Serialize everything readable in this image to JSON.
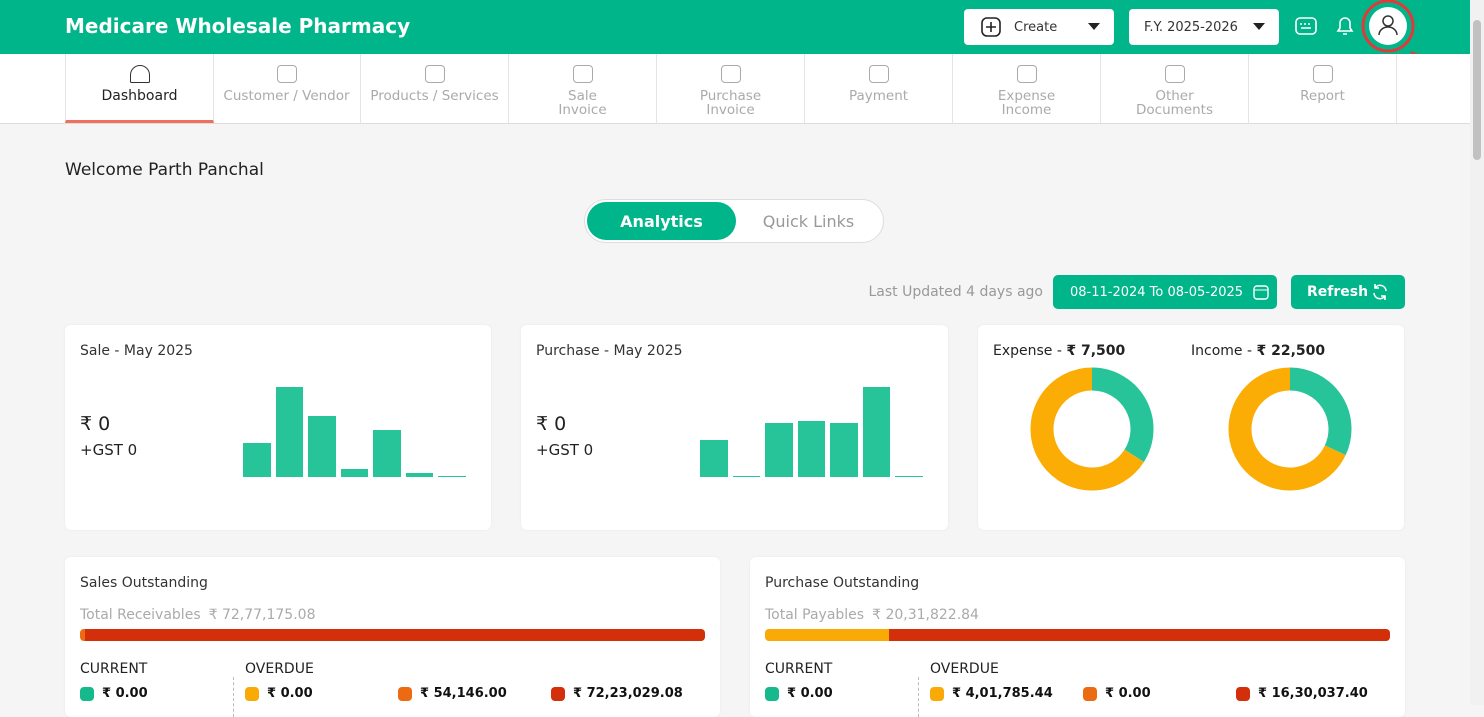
{
  "header": {
    "title": "Medicare Wholesale Pharmacy",
    "create": "Create",
    "fiscal_year": "F.Y. 2025-2026"
  },
  "nav": [
    {
      "lines": [
        "Dashboard"
      ]
    },
    {
      "lines": [
        "Customer / Vendor"
      ]
    },
    {
      "lines": [
        "Products / Services"
      ]
    },
    {
      "lines": [
        "Sale",
        "Invoice"
      ]
    },
    {
      "lines": [
        "Purchase",
        "Invoice"
      ]
    },
    {
      "lines": [
        "Payment"
      ]
    },
    {
      "lines": [
        "Expense",
        "Income"
      ]
    },
    {
      "lines": [
        "Other",
        "Documents"
      ]
    },
    {
      "lines": [
        "Report"
      ]
    }
  ],
  "welcome": "Welcome Parth Panchal",
  "tabs": [
    "Analytics",
    "Quick Links"
  ],
  "last_updated": "Last Updated 4 days ago",
  "date_range": "08-11-2024 To 08-05-2025",
  "refresh": "Refresh",
  "sale_card": {
    "title": "Sale - May 2025",
    "amount": "₹ 0",
    "gst": "+GST 0",
    "bars": [
      38,
      100,
      68,
      9,
      52,
      5,
      1
    ]
  },
  "purchase_card": {
    "title": "Purchase - May 2025",
    "amount": "₹ 0",
    "gst": "+GST 0",
    "bars": [
      41,
      1,
      60,
      62,
      60,
      100,
      1
    ]
  },
  "donuts": [
    {
      "label": "Expense - ",
      "amount": "₹ 7,500",
      "shares": [
        34,
        66
      ]
    },
    {
      "label": "Income - ",
      "amount": "₹ 22,500",
      "shares": [
        32,
        68
      ]
    }
  ],
  "outstanding": [
    {
      "title": "Sales Outstanding",
      "total_label": "Total Receivables",
      "total": "₹ 72,77,175.08",
      "current_heading": "CURRENT",
      "overdue_heading": "OVERDUE",
      "current": {
        "value": 0,
        "label": "₹ 0.00"
      },
      "overdue": [
        {
          "value": 0,
          "label": "₹ 0.00"
        },
        {
          "value": 54146,
          "label": "₹ 54,146.00"
        },
        {
          "value": 7223029.08,
          "label": "₹ 72,23,029.08"
        }
      ]
    },
    {
      "title": "Purchase Outstanding",
      "total_label": "Total Payables",
      "total": "₹ 20,31,822.84",
      "current_heading": "CURRENT",
      "overdue_heading": "OVERDUE",
      "current": {
        "value": 0,
        "label": "₹ 0.00"
      },
      "overdue": [
        {
          "value": 401785.44,
          "label": "₹ 4,01,785.44"
        },
        {
          "value": 0,
          "label": "₹ 0.00"
        },
        {
          "value": 1630037.4,
          "label": "₹ 16,30,037.40"
        }
      ]
    }
  ]
}
